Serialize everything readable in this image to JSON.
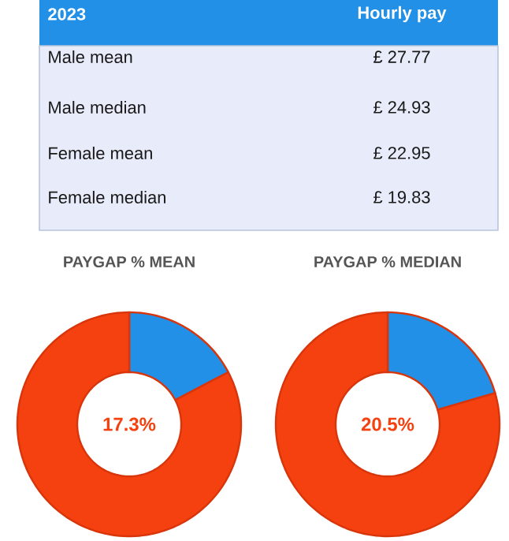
{
  "chart_data": [
    {
      "type": "other",
      "title": "2023",
      "annotations": [
        "Hourly pay",
        "Male mean",
        "£ 27.77",
        "Male median",
        "£ 24.93",
        "Female mean",
        "£ 22.95",
        "Female median",
        "£ 19.83"
      ]
    },
    {
      "type": "donut",
      "title": "PAYGAP % MEAN",
      "categories": [
        null,
        null
      ],
      "values": [
        17.3,
        82.7
      ],
      "colors": [
        "#2190e6",
        "#f5400f"
      ],
      "annotations": [
        "17.3%"
      ]
    },
    {
      "type": "donut",
      "title": "PAYGAP % MEDIAN",
      "categories": [
        null,
        null
      ],
      "values": [
        20.5,
        79.5
      ],
      "colors": [
        "#2190e6",
        "#f5400f"
      ],
      "annotations": [
        "20.5%"
      ]
    }
  ]
}
